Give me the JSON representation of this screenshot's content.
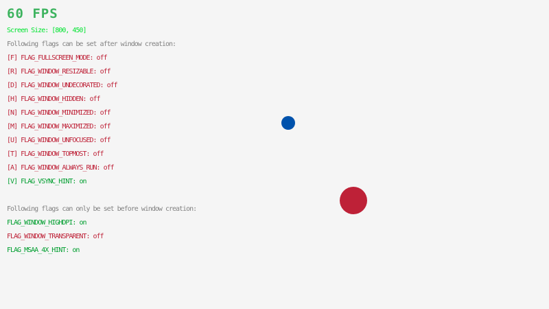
{
  "fps": {
    "text": "60 FPS",
    "color": "#3cb35e"
  },
  "screen_size": {
    "text": "Screen Size: [800, 450]",
    "color": "#00e430"
  },
  "colors": {
    "on": "#009e2f",
    "off": "#be2137",
    "info": "#828282",
    "background": "#f5f5f5"
  },
  "after_creation": {
    "heading": "Following flags can be set after window creation:",
    "flags": [
      {
        "label": "[F] FLAG_FULLSCREEN_MODE: ",
        "state": "off"
      },
      {
        "label": "[R] FLAG_WINDOW_RESIZABLE: ",
        "state": "off"
      },
      {
        "label": "[D] FLAG_WINDOW_UNDECORATED: ",
        "state": "off"
      },
      {
        "label": "[H] FLAG_WINDOW_HIDDEN: ",
        "state": "off"
      },
      {
        "label": "[N] FLAG_WINDOW_MINIMIZED: ",
        "state": "off"
      },
      {
        "label": "[M] FLAG_WINDOW_MAXIMIZED: ",
        "state": "off"
      },
      {
        "label": "[U] FLAG_WINDOW_UNFOCUSED: ",
        "state": "off"
      },
      {
        "label": "[T] FLAG_WINDOW_TOPMOST: ",
        "state": "off"
      },
      {
        "label": "[A] FLAG_WINDOW_ALWAYS_RUN: ",
        "state": "off"
      },
      {
        "label": "[V] FLAG_VSYNC_HINT: ",
        "state": "on"
      }
    ]
  },
  "before_creation": {
    "heading": "Following flags can only be set before window creation:",
    "flags": [
      {
        "label": "FLAG_WINDOW_HIGHDPI: ",
        "state": "on"
      },
      {
        "label": "FLAG_WINDOW_TRANSPARENT: ",
        "state": "off"
      },
      {
        "label": "FLAG_MSAA_4X_HINT: ",
        "state": "on"
      }
    ]
  },
  "balls": {
    "small_color": "#0052ac",
    "large_color": "#be2137"
  }
}
